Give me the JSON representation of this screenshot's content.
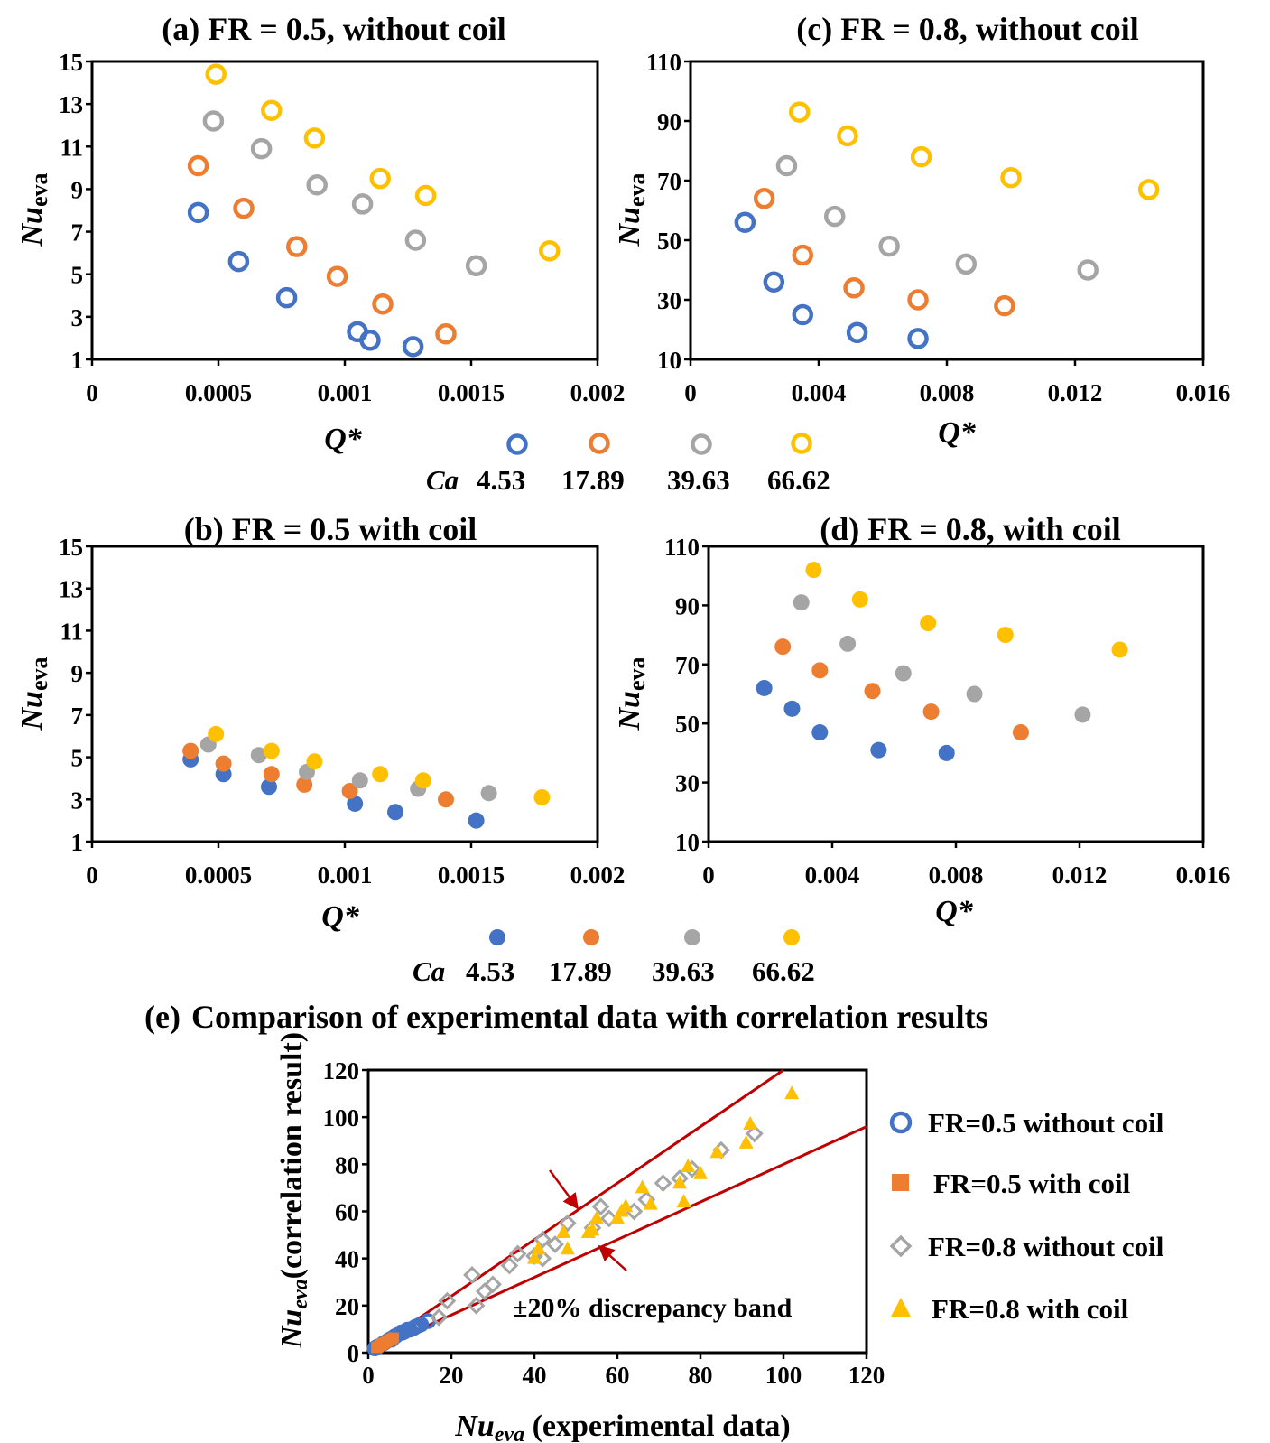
{
  "ca_legend": {
    "label": "Ca",
    "values": [
      "4.53",
      "17.89",
      "39.63",
      "66.62"
    ]
  },
  "colors": {
    "blue": "#4472C4",
    "orange": "#ED7D31",
    "gray": "#A5A5A5",
    "yellow": "#FFC000",
    "red": "#C00000"
  },
  "chart_data": [
    {
      "id": "a",
      "type": "scatter",
      "title": "(a) FR = 0.5, without coil",
      "xlabel": "Q*",
      "ylabel_main": "Nu",
      "ylabel_sub": "eva",
      "xlim": [
        0,
        0.002
      ],
      "ylim": [
        1,
        15
      ],
      "xticks": [
        "0",
        "0.0005",
        "0.001",
        "0.0015",
        "0.002"
      ],
      "yticks": [
        "1",
        "3",
        "5",
        "7",
        "9",
        "11",
        "13",
        "15"
      ],
      "marker": "hollow-circle",
      "series": [
        {
          "name": "4.53",
          "color": "blue",
          "x": [
            0.00042,
            0.00058,
            0.00077,
            0.00105,
            0.0011,
            0.00127
          ],
          "y": [
            7.9,
            5.6,
            3.9,
            2.3,
            1.9,
            1.6
          ]
        },
        {
          "name": "17.89",
          "color": "orange",
          "x": [
            0.00042,
            0.0006,
            0.00081,
            0.00097,
            0.00115,
            0.0014
          ],
          "y": [
            10.1,
            8.1,
            6.3,
            4.9,
            3.6,
            2.2
          ]
        },
        {
          "name": "39.63",
          "color": "gray",
          "x": [
            0.00048,
            0.00067,
            0.00089,
            0.00107,
            0.00128,
            0.00152
          ],
          "y": [
            12.2,
            10.9,
            9.2,
            8.3,
            6.6,
            5.4
          ]
        },
        {
          "name": "66.62",
          "color": "yellow",
          "x": [
            0.00049,
            0.00071,
            0.00088,
            0.00114,
            0.00132,
            0.00181
          ],
          "y": [
            14.4,
            12.7,
            11.4,
            9.5,
            8.7,
            6.1
          ]
        }
      ]
    },
    {
      "id": "c",
      "type": "scatter",
      "title": "(c) FR = 0.8, without coil",
      "xlabel": "Q*",
      "ylabel_main": "Nu",
      "ylabel_sub": "eva",
      "xlim": [
        0,
        0.016
      ],
      "ylim": [
        10,
        110
      ],
      "xticks": [
        "0",
        "0.004",
        "0.008",
        "0.012",
        "0.016"
      ],
      "yticks": [
        "10",
        "30",
        "50",
        "70",
        "90",
        "110"
      ],
      "marker": "hollow-circle",
      "series": [
        {
          "name": "4.53",
          "color": "blue",
          "x": [
            0.0017,
            0.0026,
            0.0035,
            0.0052,
            0.0071
          ],
          "y": [
            56,
            36,
            25,
            19,
            17
          ]
        },
        {
          "name": "17.89",
          "color": "orange",
          "x": [
            0.0023,
            0.0035,
            0.0051,
            0.0071,
            0.0098
          ],
          "y": [
            64,
            45,
            34,
            30,
            28
          ]
        },
        {
          "name": "39.63",
          "color": "gray",
          "x": [
            0.003,
            0.0045,
            0.0062,
            0.0086,
            0.0124
          ],
          "y": [
            75,
            58,
            48,
            42,
            40
          ]
        },
        {
          "name": "66.62",
          "color": "yellow",
          "x": [
            0.0034,
            0.0049,
            0.0072,
            0.01,
            0.0143
          ],
          "y": [
            93,
            85,
            78,
            71,
            67
          ]
        }
      ]
    },
    {
      "id": "b",
      "type": "scatter",
      "title": "(b) FR = 0.5 with coil",
      "xlabel": "Q*",
      "ylabel_main": "Nu",
      "ylabel_sub": "eva",
      "xlim": [
        0,
        0.002
      ],
      "ylim": [
        1,
        15
      ],
      "xticks": [
        "0",
        "0.0005",
        "0.001",
        "0.0015",
        "0.002"
      ],
      "yticks": [
        "1",
        "3",
        "5",
        "7",
        "9",
        "11",
        "13",
        "15"
      ],
      "marker": "filled-circle",
      "series": [
        {
          "name": "4.53",
          "color": "blue",
          "x": [
            0.00039,
            0.00052,
            0.0007,
            0.00104,
            0.0012,
            0.00152
          ],
          "y": [
            4.9,
            4.2,
            3.6,
            2.8,
            2.4,
            2.0
          ]
        },
        {
          "name": "17.89",
          "color": "orange",
          "x": [
            0.00039,
            0.00052,
            0.00071,
            0.00084,
            0.00102,
            0.0014
          ],
          "y": [
            5.3,
            4.7,
            4.2,
            3.7,
            3.4,
            3.0
          ]
        },
        {
          "name": "39.63",
          "color": "gray",
          "x": [
            0.00046,
            0.00066,
            0.00085,
            0.00106,
            0.00129,
            0.00157
          ],
          "y": [
            5.6,
            5.1,
            4.3,
            3.9,
            3.5,
            3.3
          ]
        },
        {
          "name": "66.62",
          "color": "yellow",
          "x": [
            0.00049,
            0.00071,
            0.00088,
            0.00114,
            0.00131,
            0.00178
          ],
          "y": [
            6.1,
            5.3,
            4.8,
            4.2,
            3.9,
            3.1
          ]
        }
      ]
    },
    {
      "id": "d",
      "type": "scatter",
      "title": "(d) FR = 0.8, with coil",
      "xlabel": "Q*",
      "ylabel_main": "Nu",
      "ylabel_sub": "eva",
      "xlim": [
        0,
        0.016
      ],
      "ylim": [
        10,
        110
      ],
      "xticks": [
        "0",
        "0.004",
        "0.008",
        "0.012",
        "0.016"
      ],
      "yticks": [
        "10",
        "30",
        "50",
        "70",
        "90",
        "110"
      ],
      "marker": "filled-circle",
      "series": [
        {
          "name": "4.53",
          "color": "blue",
          "x": [
            0.0018,
            0.0027,
            0.0036,
            0.0055,
            0.0077
          ],
          "y": [
            62,
            55,
            47,
            41,
            40
          ]
        },
        {
          "name": "17.89",
          "color": "orange",
          "x": [
            0.0024,
            0.0036,
            0.0053,
            0.0072,
            0.0101
          ],
          "y": [
            76,
            68,
            61,
            54,
            47
          ]
        },
        {
          "name": "39.63",
          "color": "gray",
          "x": [
            0.003,
            0.0045,
            0.0063,
            0.0086,
            0.0121
          ],
          "y": [
            91,
            77,
            67,
            60,
            53
          ]
        },
        {
          "name": "66.62",
          "color": "yellow",
          "x": [
            0.0034,
            0.0049,
            0.0071,
            0.0096,
            0.0133
          ],
          "y": [
            102,
            92,
            84,
            80,
            75
          ]
        }
      ]
    },
    {
      "id": "e",
      "type": "scatter",
      "title_tag": "(e)",
      "title": "Comparison of experimental data with correlation results",
      "xlabel_main": "Nu",
      "xlabel_sub": "eva",
      "xlabel_rest": " (experimental data)",
      "ylabel_main": "Nu",
      "ylabel_sub": "eva",
      "ylabel_rest": "(correlation result)",
      "xlim": [
        0,
        120
      ],
      "ylim": [
        0,
        120
      ],
      "xticks": [
        "0",
        "20",
        "40",
        "60",
        "80",
        "100",
        "120"
      ],
      "yticks": [
        "0",
        "20",
        "40",
        "60",
        "80",
        "100",
        "120"
      ],
      "band_label": "±20% discrepancy band",
      "band_slopes": [
        1.2,
        0.8
      ],
      "series": [
        {
          "name": "FR=0.5 without coil",
          "color": "blue",
          "marker": "hollow-circle",
          "x": [
            1.6,
            1.9,
            2.3,
            3.9,
            5.6,
            7.9,
            2.2,
            3.6,
            4.9,
            6.3,
            8.1,
            10.1,
            5.4,
            6.6,
            8.3,
            9.2,
            10.9,
            12.2,
            6.1,
            8.7,
            9.5,
            11.4,
            12.7,
            14.4
          ],
          "y": [
            1.8,
            2.2,
            2.6,
            4.2,
            5.5,
            8.6,
            2.4,
            3.9,
            5.3,
            6.8,
            8.4,
            9.8,
            5.8,
            7.1,
            8.6,
            9.5,
            10.4,
            11.6,
            6.4,
            8.9,
            9.8,
            11.0,
            12.0,
            13.4
          ]
        },
        {
          "name": "FR=0.5 with coil",
          "color": "orange",
          "marker": "filled-square",
          "x": [
            2.0,
            2.4,
            2.8,
            3.0,
            3.3,
            3.4,
            3.6,
            3.7,
            4.2,
            4.7,
            4.9,
            5.3,
            5.6,
            6.1
          ],
          "y": [
            2.2,
            2.6,
            3.0,
            3.3,
            3.5,
            3.6,
            3.9,
            4.0,
            4.4,
            4.9,
            5.1,
            5.5,
            5.8,
            6.3
          ]
        },
        {
          "name": "FR=0.8 without coil",
          "color": "gray",
          "marker": "hollow-diamond",
          "x": [
            17,
            19,
            25,
            26,
            28,
            30,
            34,
            36,
            40,
            42,
            42,
            45,
            48,
            54,
            56,
            58,
            64,
            67,
            71,
            75,
            78,
            85,
            93
          ],
          "y": [
            15,
            22,
            33,
            20,
            26,
            29,
            37,
            42,
            41,
            48,
            40,
            46,
            55,
            53,
            62,
            57,
            60,
            65,
            72,
            74,
            78,
            86,
            93
          ]
        },
        {
          "name": "FR=0.8 with coil",
          "color": "yellow",
          "marker": "filled-triangle",
          "x": [
            40,
            41,
            47,
            48,
            53,
            54,
            55,
            60,
            61,
            62,
            66,
            68,
            75,
            76,
            77,
            80,
            84,
            91,
            92,
            102
          ],
          "y": [
            40,
            44,
            51,
            44,
            51,
            52,
            57,
            57,
            60,
            62,
            70,
            63,
            72,
            64,
            79,
            76,
            85,
            89,
            97,
            110
          ]
        }
      ]
    }
  ]
}
